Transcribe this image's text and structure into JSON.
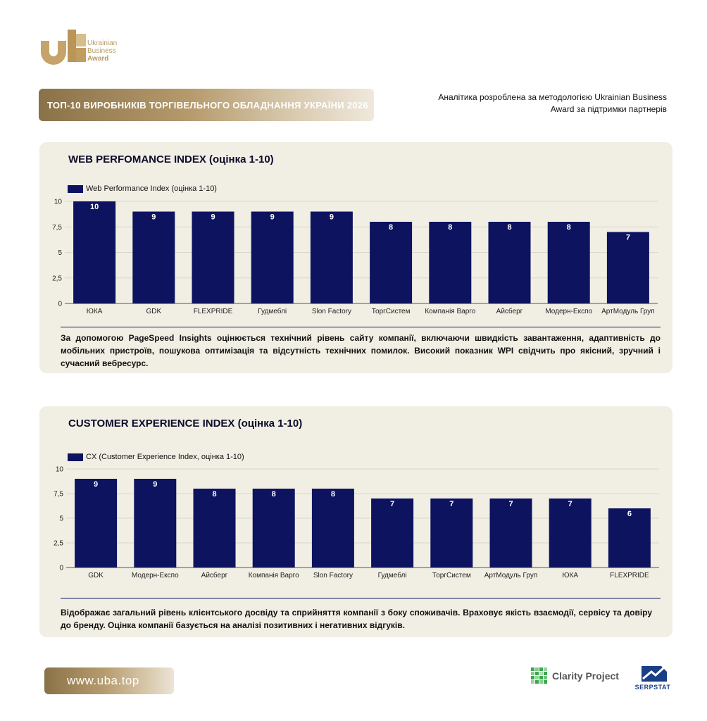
{
  "logo": {
    "line1": "Ukrainian",
    "line2": "Business",
    "line3": "Award"
  },
  "title": "ТОП-10 ВИРОБНИКІВ ТОРГІВЕЛЬНОГО ОБЛАДНАННЯ УКРАЇНИ 2026",
  "tagline": "Аналітика розроблена за методологією Ukrainian Business Award за підтримки партнерів",
  "colors": {
    "bar": "#0d135f",
    "gold": "#b59a6c",
    "panel": "#f1eee4",
    "grid": "#d9d6cd",
    "text": "#111111"
  },
  "panels": [
    {
      "heading": "WEB PERFOMANCE INDEX (оцінка 1-10)",
      "legend": "Web Performance Index (оцінка 1-10)",
      "description": "За допомогою PageSpeed Insights оцінюється технічний рівень сайту компанії, включаючи швидкість завантаження, адаптивність до мобільних пристроїв, пошукова оптимізація та відсутність технічних помилок. Високий показник WPI свідчить про якісний, зручний і сучасний вебресурс."
    },
    {
      "heading": "CUSTOMER EXPERIENCE INDEX (оцінка 1-10)",
      "legend": "CX (Customer Experience Index, оцінка 1-10)",
      "description": "Відображає загальний рівень клієнтського досвіду та сприйняття компанії з боку споживачів. Враховує якість взаємодії, сервісу та довіру до бренду. Оцінка компанії базується на аналізі позитивних і негативних відгуків."
    }
  ],
  "chart_data": [
    {
      "type": "bar",
      "title": "WEB PERFOMANCE INDEX (оцінка 1-10)",
      "categories": [
        "ЮКА",
        "GDK",
        "FLEXPRIDE",
        "Гудмеблі",
        "Slon Factory",
        "ТоргСистем",
        "Компанія Варго",
        "Айсберг",
        "Модерн-Експо",
        "АртМодуль Груп"
      ],
      "series": [
        {
          "name": "Web Performance Index (оцінка 1-10)",
          "values": [
            10,
            9,
            9,
            9,
            9,
            8,
            8,
            8,
            8,
            7
          ]
        }
      ],
      "value_labels": [
        "10",
        "9",
        "9",
        "9",
        "9",
        "8",
        "8",
        "8",
        "8",
        "7"
      ],
      "ylim": [
        0,
        10
      ],
      "yticks": [
        "0",
        "2,5",
        "5",
        "7,5",
        "10"
      ],
      "ytick_values": [
        0,
        2.5,
        5,
        7.5,
        10
      ],
      "grid": true,
      "legend_position": "top-left"
    },
    {
      "type": "bar",
      "title": "CUSTOMER EXPERIENCE INDEX (оцінка 1-10)",
      "categories": [
        "GDK",
        "Модерн-Експо",
        "Айсберг",
        "Компанія Варго",
        "Slon Factory",
        "Гудмеблі",
        "ТоргСистем",
        "АртМодуль Груп",
        "ЮКА",
        "FLEXPRIDE"
      ],
      "series": [
        {
          "name": "CX (Customer Experience Index, оцінка 1-10)",
          "values": [
            9,
            9,
            8,
            8,
            8,
            7,
            7,
            7,
            7,
            6
          ]
        }
      ],
      "value_labels": [
        "9",
        "9",
        "8",
        "8",
        "8",
        "7",
        "7",
        "7",
        "7",
        "6"
      ],
      "ylim": [
        0,
        10
      ],
      "yticks": [
        "0",
        "2,5",
        "5",
        "7,5",
        "10"
      ],
      "ytick_values": [
        0,
        2.5,
        5,
        7.5,
        10
      ],
      "grid": true,
      "legend_position": "top-left"
    }
  ],
  "footer": {
    "url": "www.uba.top",
    "partner1": "Clarity Project",
    "partner2": "SERPSTAT"
  }
}
